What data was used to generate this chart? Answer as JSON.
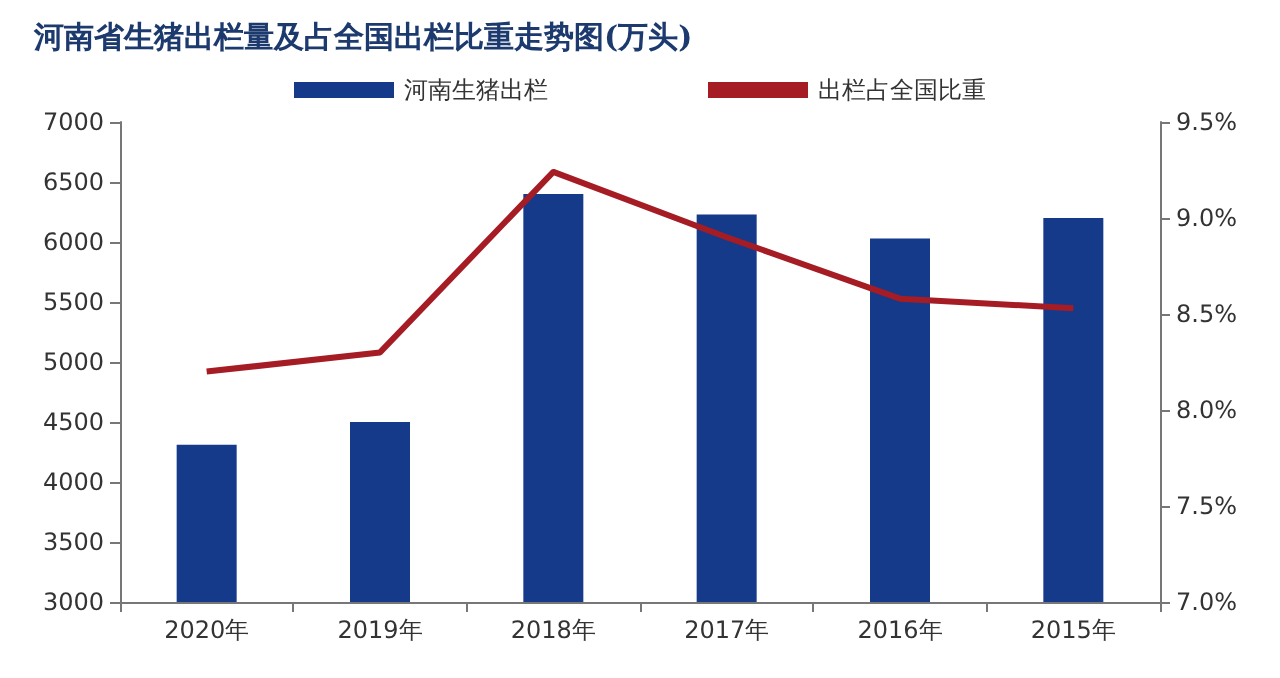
{
  "chart_data": {
    "type": "bar",
    "title": "河南省生猪出栏量及占全国出栏比重走势图(万头)",
    "categories": [
      "2020年",
      "2019年",
      "2018年",
      "2017年",
      "2016年",
      "2015年"
    ],
    "series": [
      {
        "name": "河南生猪出栏",
        "color": "#163a8a",
        "values": [
          4310,
          4500,
          6400,
          6230,
          6030,
          6200
        ]
      },
      {
        "name": "出栏占全国比重",
        "type": "line",
        "axis": "y2",
        "color": "#a51c24",
        "values": [
          8.2,
          8.3,
          9.24,
          8.9,
          8.58,
          8.53
        ]
      }
    ],
    "ylim": [
      3000,
      7000
    ],
    "yticks": [
      3000,
      3500,
      4000,
      4500,
      5000,
      5500,
      6000,
      6500,
      7000
    ],
    "y2lim": [
      7.0,
      9.5
    ],
    "y2ticks": [
      {
        "value": 7.0,
        "label": "7.0%"
      },
      {
        "value": 7.5,
        "label": "7.5%"
      },
      {
        "value": 8.0,
        "label": "8.0%"
      },
      {
        "value": 8.5,
        "label": "8.5%"
      },
      {
        "value": 9.0,
        "label": "9.0%"
      },
      {
        "value": 9.5,
        "label": "9.5%"
      }
    ],
    "legend": "top",
    "grid": false,
    "marker": "none"
  }
}
